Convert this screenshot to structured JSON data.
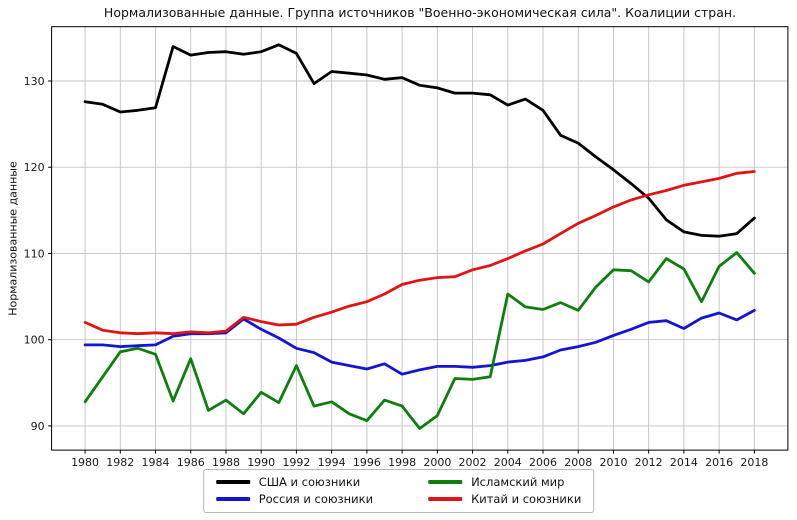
{
  "title": "Нормализованные данные. Группа источников \"Военно-экономическая сила\". Коалиции стран.",
  "chart_data": {
    "type": "line",
    "title": "Нормализованные данные. Группа источников \"Военно-экономическая сила\". Коалиции стран.",
    "xlabel": "",
    "ylabel": "Нормализованные данные",
    "x": [
      1980,
      1981,
      1982,
      1983,
      1984,
      1985,
      1986,
      1987,
      1988,
      1989,
      1990,
      1991,
      1992,
      1993,
      1994,
      1995,
      1996,
      1997,
      1998,
      1999,
      2000,
      2001,
      2002,
      2003,
      2004,
      2005,
      2006,
      2007,
      2008,
      2009,
      2010,
      2011,
      2012,
      2013,
      2014,
      2015,
      2016,
      2017,
      2018
    ],
    "xticks": [
      1980,
      1982,
      1984,
      1986,
      1988,
      1990,
      1992,
      1994,
      1996,
      1998,
      2000,
      2002,
      2004,
      2006,
      2008,
      2010,
      2012,
      2014,
      2016,
      2018
    ],
    "yticks": [
      90,
      100,
      110,
      120,
      130
    ],
    "ylim": [
      87.2,
      136.3
    ],
    "xlim": [
      1978.1,
      2019.9
    ],
    "grid": true,
    "legend_position": "bottom-center",
    "series": [
      {
        "name": "США и союзники",
        "color": "#000000",
        "values": [
          127.6,
          127.3,
          126.4,
          126.6,
          126.9,
          134.0,
          133.0,
          133.3,
          133.4,
          133.1,
          133.4,
          134.2,
          133.2,
          129.7,
          131.1,
          130.9,
          130.7,
          130.2,
          130.4,
          129.5,
          129.2,
          128.6,
          128.6,
          128.4,
          127.2,
          127.9,
          126.6,
          123.7,
          122.8,
          121.2,
          119.7,
          118.1,
          116.4,
          113.9,
          112.5,
          112.1,
          112.0,
          112.3,
          114.1
        ]
      },
      {
        "name": "Россия и союзники",
        "color": "#1515d0",
        "values": [
          99.4,
          99.4,
          99.2,
          99.3,
          99.4,
          100.4,
          100.7,
          100.7,
          100.8,
          102.4,
          101.2,
          100.2,
          99.0,
          98.5,
          97.4,
          97.0,
          96.6,
          97.2,
          96.0,
          96.5,
          96.9,
          96.9,
          96.8,
          97.0,
          97.4,
          97.6,
          98.0,
          98.8,
          99.2,
          99.7,
          100.5,
          101.2,
          102.0,
          102.2,
          101.3,
          102.5,
          103.1,
          102.3,
          103.4
        ]
      },
      {
        "name": "Исламский мир",
        "color": "#0f7d0f",
        "values": [
          92.8,
          95.7,
          98.6,
          99.0,
          98.3,
          92.9,
          97.8,
          91.8,
          93.0,
          91.4,
          93.9,
          92.7,
          97.0,
          92.3,
          92.8,
          91.4,
          90.6,
          93.0,
          92.3,
          89.7,
          91.2,
          95.5,
          95.4,
          95.7,
          105.3,
          103.8,
          103.5,
          104.3,
          103.4,
          106.1,
          108.1,
          108.0,
          106.7,
          109.4,
          108.2,
          104.4,
          108.5,
          110.1,
          107.7
        ]
      },
      {
        "name": "Китай и союзники",
        "color": "#e01414",
        "values": [
          102.0,
          101.1,
          100.8,
          100.7,
          100.8,
          100.7,
          100.9,
          100.8,
          101.0,
          102.6,
          102.1,
          101.7,
          101.8,
          102.6,
          103.2,
          103.9,
          104.4,
          105.3,
          106.4,
          106.9,
          107.2,
          107.3,
          108.1,
          108.6,
          109.4,
          110.3,
          111.1,
          112.3,
          113.5,
          114.4,
          115.4,
          116.2,
          116.8,
          117.3,
          117.9,
          118.3,
          118.7,
          119.3,
          119.5
        ]
      }
    ],
    "axis_color": "#000000",
    "grid_color": "#c3c3c3",
    "tick_label_color": "#1a1a1a"
  }
}
